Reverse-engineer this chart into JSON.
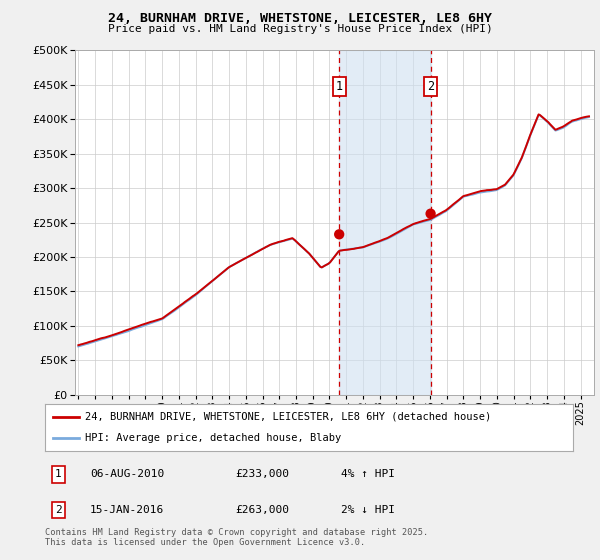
{
  "title1": "24, BURNHAM DRIVE, WHETSTONE, LEICESTER, LE8 6HY",
  "title2": "Price paid vs. HM Land Registry's House Price Index (HPI)",
  "ylim": [
    0,
    500000
  ],
  "xlim_start": 1994.8,
  "xlim_end": 2025.8,
  "transaction1": {
    "date": 2010.58,
    "price": 233000,
    "label": "1",
    "text": "06-AUG-2010",
    "amount": "£233,000",
    "pct": "4% ↑ HPI"
  },
  "transaction2": {
    "date": 2016.04,
    "price": 263000,
    "label": "2",
    "text": "15-JAN-2016",
    "amount": "£263,000",
    "pct": "2% ↓ HPI"
  },
  "shade_color": "#cfe0f0",
  "shade_alpha": 0.6,
  "line1_color": "#cc0000",
  "line2_color": "#7aaadd",
  "legend1": "24, BURNHAM DRIVE, WHETSTONE, LEICESTER, LE8 6HY (detached house)",
  "legend2": "HPI: Average price, detached house, Blaby",
  "footer": "Contains HM Land Registry data © Crown copyright and database right 2025.\nThis data is licensed under the Open Government Licence v3.0.",
  "background_color": "#f0f0f0",
  "plot_bg": "#ffffff",
  "grid_color": "#cccccc"
}
